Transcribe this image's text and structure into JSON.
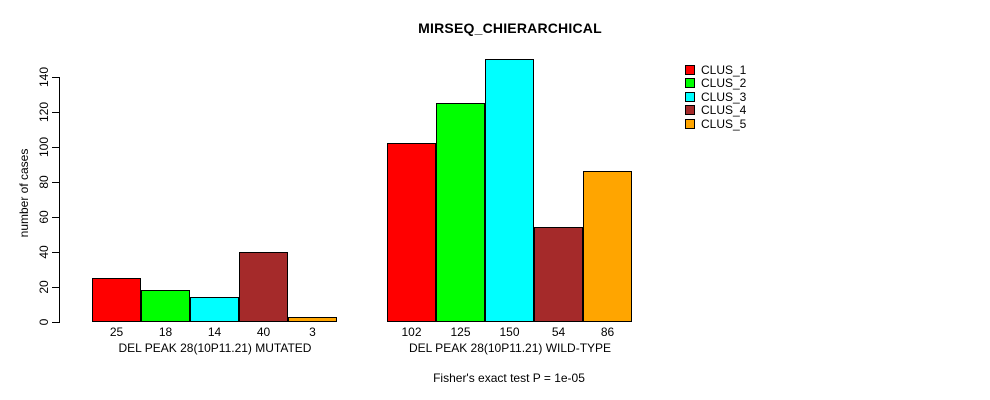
{
  "chart_data": {
    "type": "bar",
    "title": "MIRSEQ_CHIERARCHICAL",
    "ylabel": "number of cases",
    "footnote": "Fisher's exact test P = 1e-05",
    "categories": [
      "DEL PEAK 28(10P11.21) MUTATED",
      "DEL PEAK 28(10P11.21) WILD-TYPE"
    ],
    "series": [
      {
        "name": "CLUS_1",
        "color": "#FF0000",
        "values": [
          25,
          102
        ]
      },
      {
        "name": "CLUS_2",
        "color": "#00FF00",
        "values": [
          18,
          125
        ]
      },
      {
        "name": "CLUS_3",
        "color": "#00FFFF",
        "values": [
          14,
          150
        ]
      },
      {
        "name": "CLUS_4",
        "color": "#A52A2A",
        "values": [
          40,
          54
        ]
      },
      {
        "name": "CLUS_5",
        "color": "#FFA500",
        "values": [
          3,
          86
        ]
      }
    ],
    "bar_value_labels": [
      [
        "25",
        "18",
        "14",
        "40",
        "3"
      ],
      [
        "102",
        "125",
        "150",
        "54",
        "86"
      ]
    ],
    "yticks": [
      0,
      20,
      40,
      60,
      80,
      100,
      120,
      140
    ],
    "ylim": [
      0,
      150
    ],
    "grid": false,
    "legend_position": "right-inside",
    "axis_color": "#000000",
    "bar_border_color": "#000000"
  }
}
